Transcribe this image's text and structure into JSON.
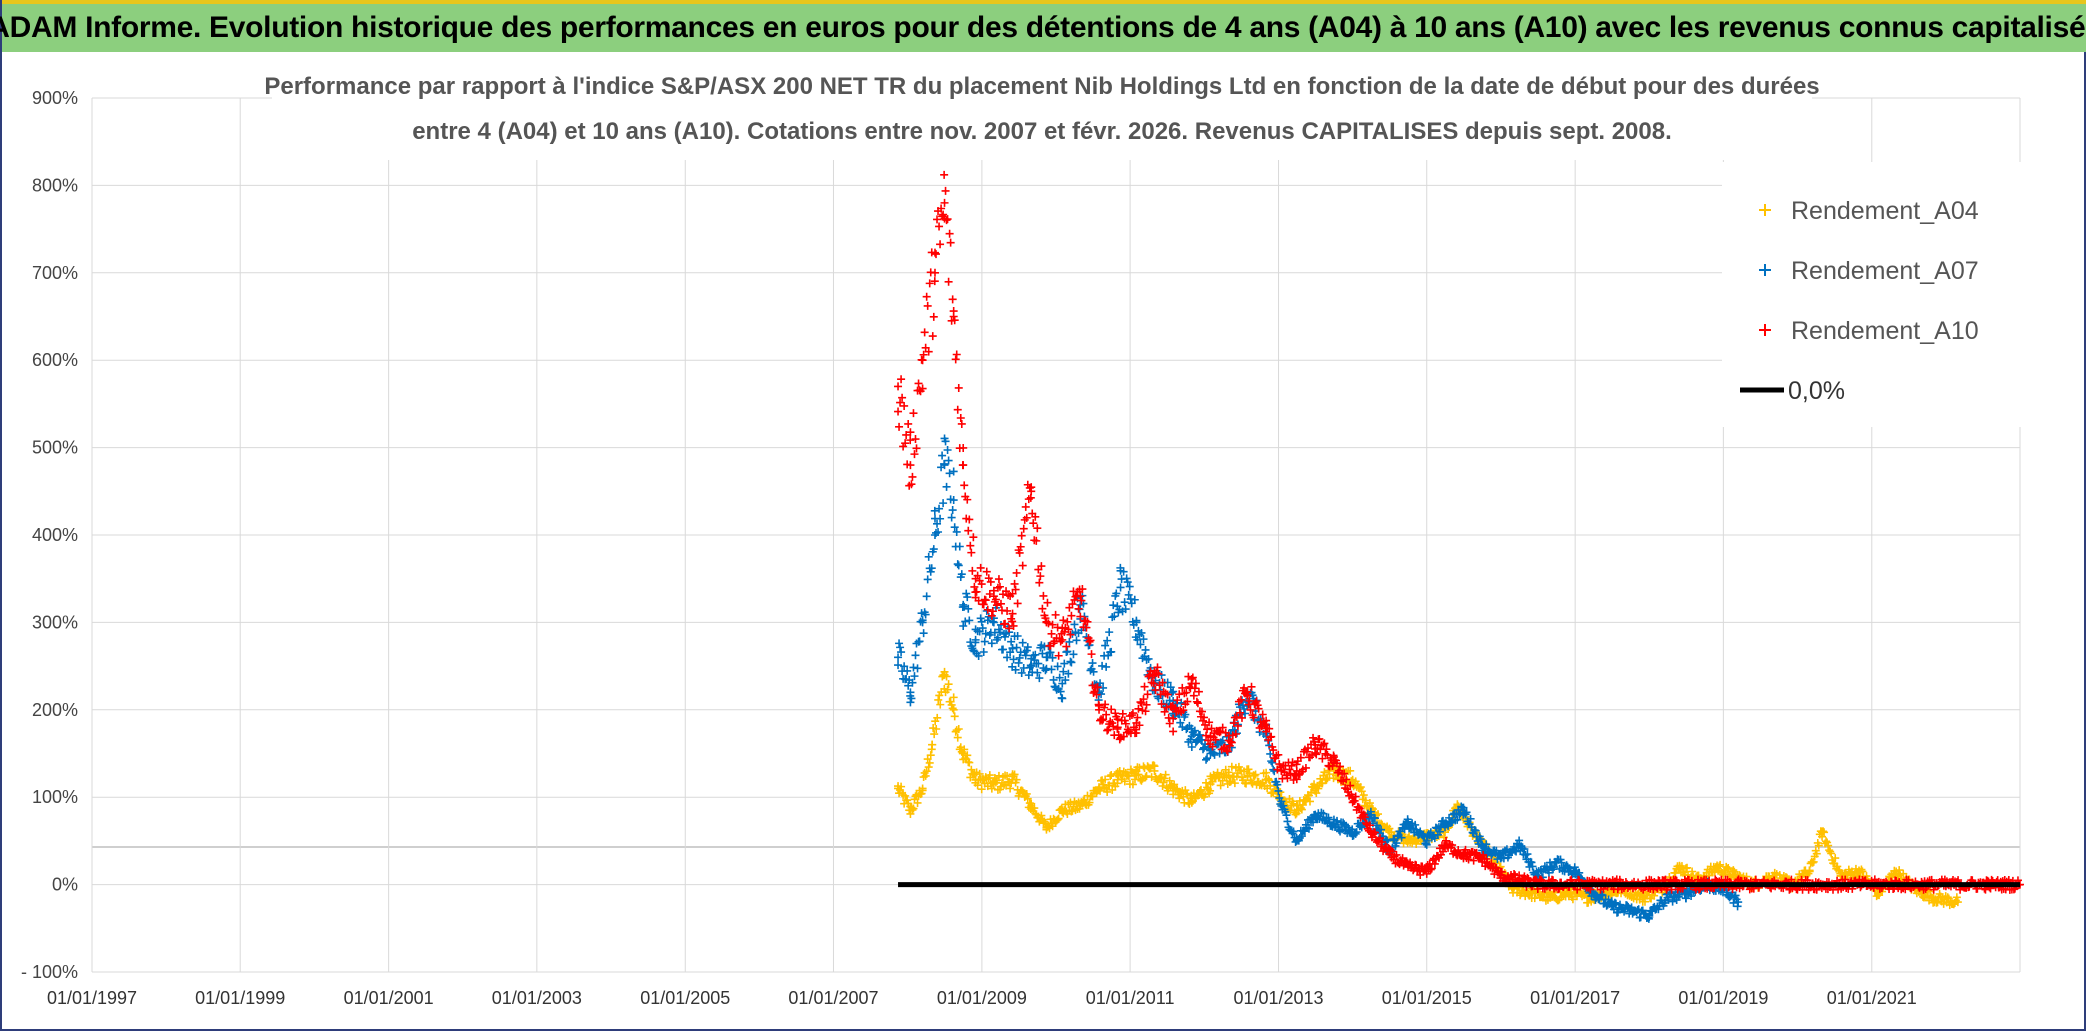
{
  "banner": {
    "title": "ADAM Informe. Evolution historique des performances en euros pour des détentions de 4 ans (A04) à 10 ans (A10) avec les revenus connus capitalisés"
  },
  "colors": {
    "banner_bg": "#8ccf7e",
    "banner_border": "#e8c61c",
    "A04": "#ffc000",
    "A07": "#0070c0",
    "A10": "#ff0000",
    "zero_line": "#000000",
    "grid": "#d9d9d9"
  },
  "chart_data": {
    "type": "scatter",
    "title_lines": [
      "Performance par rapport à l'indice S&P/ASX 200 NET TR  du placement Nib Holdings Ltd en fonction de la date de début pour des durées",
      "entre 4 (A04) et 10 ans (A10). Cotations entre nov. 2007 et févr. 2026. Revenus CAPITALISES depuis sept. 2008."
    ],
    "x_axis": {
      "type": "date",
      "range": [
        "1997-01-01",
        "2023-01-01"
      ],
      "tick_labels": [
        "01/01/1997",
        "01/01/1999",
        "01/01/2001",
        "01/01/2003",
        "01/01/2005",
        "01/01/2007",
        "01/01/2009",
        "01/01/2011",
        "01/01/2013",
        "01/01/2015",
        "01/01/2017",
        "01/01/2019",
        "01/01/2021"
      ]
    },
    "y_axis": {
      "range": [
        -100,
        900
      ],
      "unit": "%",
      "tick_labels": [
        "- 100%",
        "0%",
        "100%",
        "200%",
        "300%",
        "400%",
        "500%",
        "600%",
        "700%",
        "800%",
        "900%"
      ]
    },
    "grid": true,
    "legend_position": "top-right",
    "marker": "plus",
    "series": [
      {
        "name": "Rendement_A04",
        "color": "#ffc000",
        "points": [
          [
            "2007-11-15",
            110
          ],
          [
            "2008-01-15",
            85
          ],
          [
            "2008-03-15",
            110
          ],
          [
            "2008-05-01",
            160
          ],
          [
            "2008-07-01",
            240
          ],
          [
            "2008-08-15",
            200
          ],
          [
            "2008-10-01",
            150
          ],
          [
            "2008-12-01",
            120
          ],
          [
            "2009-03-01",
            115
          ],
          [
            "2009-06-01",
            120
          ],
          [
            "2009-09-01",
            90
          ],
          [
            "2009-11-15",
            65
          ],
          [
            "2010-02-01",
            85
          ],
          [
            "2010-05-01",
            90
          ],
          [
            "2010-08-01",
            110
          ],
          [
            "2010-11-01",
            120
          ],
          [
            "2011-02-01",
            125
          ],
          [
            "2011-05-01",
            130
          ],
          [
            "2011-08-01",
            110
          ],
          [
            "2011-11-01",
            95
          ],
          [
            "2012-02-01",
            115
          ],
          [
            "2012-05-01",
            125
          ],
          [
            "2012-08-01",
            125
          ],
          [
            "2012-11-01",
            120
          ],
          [
            "2013-01-15",
            100
          ],
          [
            "2013-04-01",
            85
          ],
          [
            "2013-07-01",
            110
          ],
          [
            "2013-10-01",
            130
          ],
          [
            "2014-01-01",
            120
          ],
          [
            "2014-04-01",
            85
          ],
          [
            "2014-07-01",
            60
          ],
          [
            "2014-10-01",
            50
          ],
          [
            "2015-01-01",
            55
          ],
          [
            "2015-04-01",
            60
          ],
          [
            "2015-06-01",
            90
          ],
          [
            "2015-09-01",
            55
          ],
          [
            "2015-12-01",
            25
          ],
          [
            "2016-03-01",
            -5
          ],
          [
            "2016-06-01",
            -10
          ],
          [
            "2016-09-01",
            -15
          ],
          [
            "2016-12-01",
            -10
          ],
          [
            "2017-03-01",
            -15
          ],
          [
            "2017-06-01",
            -10
          ],
          [
            "2017-09-01",
            -5
          ],
          [
            "2017-12-01",
            -15
          ],
          [
            "2018-03-01",
            -5
          ],
          [
            "2018-06-01",
            20
          ],
          [
            "2018-09-01",
            5
          ],
          [
            "2018-12-01",
            20
          ],
          [
            "2019-03-01",
            10
          ],
          [
            "2019-06-01",
            0
          ],
          [
            "2019-09-01",
            10
          ],
          [
            "2019-12-01",
            0
          ],
          [
            "2020-03-01",
            15
          ],
          [
            "2020-05-01",
            60
          ],
          [
            "2020-08-01",
            10
          ],
          [
            "2020-11-01",
            15
          ],
          [
            "2021-02-01",
            -10
          ],
          [
            "2021-05-01",
            15
          ],
          [
            "2021-08-01",
            -5
          ],
          [
            "2021-11-01",
            -15
          ],
          [
            "2022-03-01",
            -20
          ]
        ]
      },
      {
        "name": "Rendement_A07",
        "color": "#0070c0",
        "points": [
          [
            "2007-11-15",
            260
          ],
          [
            "2008-01-15",
            220
          ],
          [
            "2008-03-15",
            300
          ],
          [
            "2008-05-15",
            400
          ],
          [
            "2008-07-01",
            480
          ],
          [
            "2008-08-15",
            440
          ],
          [
            "2008-10-01",
            320
          ],
          [
            "2008-12-01",
            280
          ],
          [
            "2009-03-01",
            300
          ],
          [
            "2009-06-01",
            270
          ],
          [
            "2009-09-01",
            250
          ],
          [
            "2009-11-15",
            260
          ],
          [
            "2010-02-01",
            230
          ],
          [
            "2010-05-01",
            320
          ],
          [
            "2010-08-01",
            220
          ],
          [
            "2010-11-15",
            340
          ],
          [
            "2011-02-01",
            300
          ],
          [
            "2011-05-01",
            230
          ],
          [
            "2011-08-01",
            210
          ],
          [
            "2011-11-01",
            170
          ],
          [
            "2012-02-01",
            150
          ],
          [
            "2012-05-01",
            160
          ],
          [
            "2012-08-01",
            220
          ],
          [
            "2012-11-01",
            170
          ],
          [
            "2013-01-15",
            90
          ],
          [
            "2013-04-01",
            50
          ],
          [
            "2013-07-01",
            80
          ],
          [
            "2013-10-01",
            70
          ],
          [
            "2014-01-01",
            60
          ],
          [
            "2014-04-01",
            80
          ],
          [
            "2014-07-01",
            40
          ],
          [
            "2014-10-01",
            70
          ],
          [
            "2015-01-01",
            50
          ],
          [
            "2015-04-01",
            70
          ],
          [
            "2015-07-01",
            85
          ],
          [
            "2015-10-01",
            45
          ],
          [
            "2016-01-01",
            30
          ],
          [
            "2016-04-01",
            45
          ],
          [
            "2016-07-01",
            10
          ],
          [
            "2016-10-01",
            25
          ],
          [
            "2017-01-01",
            15
          ],
          [
            "2017-04-01",
            -10
          ],
          [
            "2017-07-01",
            -25
          ],
          [
            "2017-10-01",
            -30
          ],
          [
            "2018-01-01",
            -35
          ],
          [
            "2018-04-01",
            -15
          ],
          [
            "2018-07-01",
            -10
          ],
          [
            "2018-10-01",
            0
          ],
          [
            "2019-01-01",
            -5
          ],
          [
            "2019-03-15",
            -20
          ]
        ]
      },
      {
        "name": "Rendement_A10",
        "color": "#ff0000",
        "points": [
          [
            "2007-11-15",
            570
          ],
          [
            "2008-01-15",
            480
          ],
          [
            "2008-03-15",
            600
          ],
          [
            "2008-05-15",
            700
          ],
          [
            "2008-07-01",
            780
          ],
          [
            "2008-08-15",
            650
          ],
          [
            "2008-10-01",
            480
          ],
          [
            "2008-12-01",
            350
          ],
          [
            "2009-03-01",
            330
          ],
          [
            "2009-06-01",
            310
          ],
          [
            "2009-09-01",
            450
          ],
          [
            "2009-11-15",
            300
          ],
          [
            "2010-02-01",
            280
          ],
          [
            "2010-05-01",
            330
          ],
          [
            "2010-08-01",
            200
          ],
          [
            "2010-11-01",
            180
          ],
          [
            "2011-02-01",
            185
          ],
          [
            "2011-05-01",
            240
          ],
          [
            "2011-08-01",
            190
          ],
          [
            "2011-11-01",
            230
          ],
          [
            "2012-02-01",
            170
          ],
          [
            "2012-05-01",
            165
          ],
          [
            "2012-08-01",
            220
          ],
          [
            "2012-11-01",
            175
          ],
          [
            "2013-01-15",
            130
          ],
          [
            "2013-04-01",
            130
          ],
          [
            "2013-07-01",
            160
          ],
          [
            "2013-10-01",
            140
          ],
          [
            "2014-01-01",
            100
          ],
          [
            "2014-04-01",
            60
          ],
          [
            "2014-07-01",
            35
          ],
          [
            "2014-10-01",
            20
          ],
          [
            "2015-01-01",
            15
          ],
          [
            "2015-04-01",
            45
          ],
          [
            "2015-07-01",
            35
          ],
          [
            "2015-10-01",
            30
          ],
          [
            "2016-01-01",
            10
          ],
          [
            "2016-04-01",
            5
          ],
          [
            "2016-07-01",
            0
          ],
          [
            "2017-01-01",
            0
          ],
          [
            "2018-01-01",
            0
          ],
          [
            "2019-01-01",
            0
          ],
          [
            "2020-01-01",
            0
          ],
          [
            "2021-01-01",
            0
          ],
          [
            "2022-01-01",
            0
          ],
          [
            "2023-01-01",
            0
          ]
        ]
      },
      {
        "name": "0,0%",
        "color": "#000000",
        "line": true,
        "points": [
          [
            "2007-11-15",
            0
          ],
          [
            "2023-01-01",
            0
          ]
        ]
      }
    ]
  }
}
